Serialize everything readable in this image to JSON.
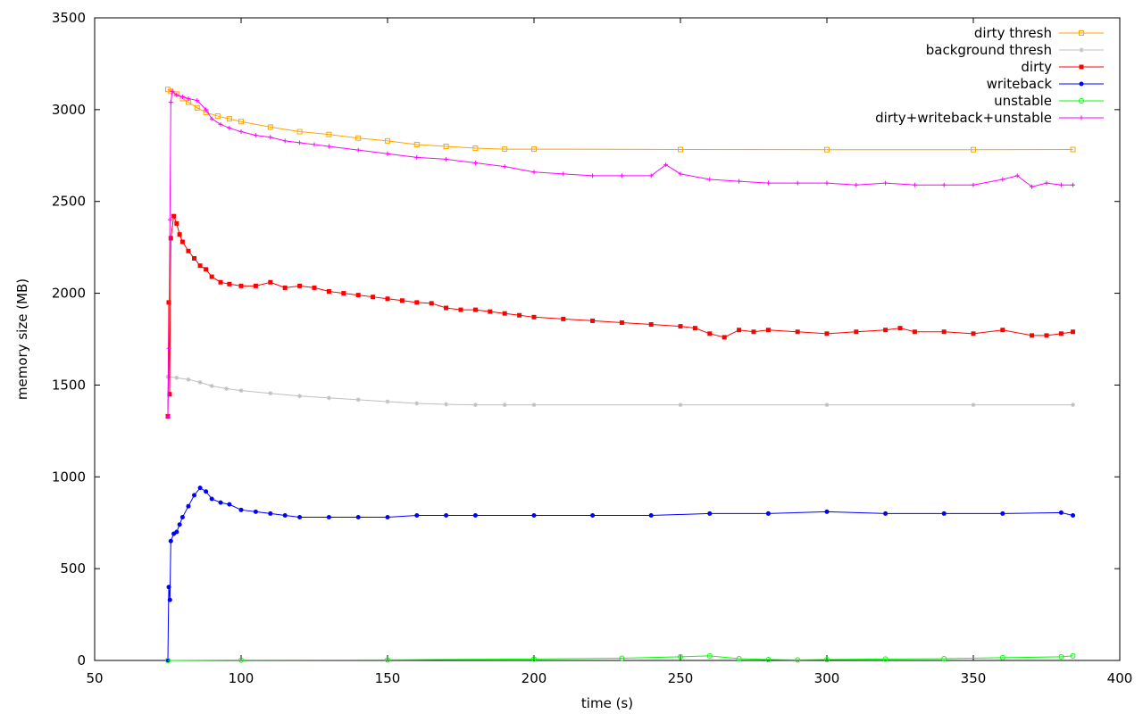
{
  "chart_data": {
    "type": "line",
    "xlabel": "time (s)",
    "ylabel": "memory size (MB)",
    "xlim": [
      50,
      400
    ],
    "ylim": [
      0,
      3500
    ],
    "xticks": [
      50,
      100,
      150,
      200,
      250,
      300,
      350,
      400
    ],
    "yticks": [
      0,
      500,
      1000,
      1500,
      2000,
      2500,
      3000,
      3500
    ],
    "grid": false,
    "legend_position": "top-right",
    "series": [
      {
        "name": "dirty thresh",
        "color": "#ffa500",
        "marker": "square-open",
        "points": [
          [
            75,
            3110
          ],
          [
            76,
            3100
          ],
          [
            78,
            3085
          ],
          [
            80,
            3060
          ],
          [
            82,
            3040
          ],
          [
            85,
            3010
          ],
          [
            88,
            2985
          ],
          [
            92,
            2965
          ],
          [
            96,
            2950
          ],
          [
            100,
            2935
          ],
          [
            110,
            2905
          ],
          [
            120,
            2880
          ],
          [
            130,
            2865
          ],
          [
            140,
            2845
          ],
          [
            150,
            2830
          ],
          [
            160,
            2810
          ],
          [
            170,
            2800
          ],
          [
            180,
            2790
          ],
          [
            190,
            2785
          ],
          [
            200,
            2785
          ],
          [
            250,
            2783
          ],
          [
            300,
            2782
          ],
          [
            350,
            2782
          ],
          [
            384,
            2783
          ]
        ]
      },
      {
        "name": "background thresh",
        "color": "#c0c0c0",
        "marker": "asterisk",
        "points": [
          [
            75,
            1545
          ],
          [
            78,
            1540
          ],
          [
            82,
            1530
          ],
          [
            86,
            1515
          ],
          [
            90,
            1495
          ],
          [
            95,
            1480
          ],
          [
            100,
            1470
          ],
          [
            110,
            1455
          ],
          [
            120,
            1440
          ],
          [
            130,
            1430
          ],
          [
            140,
            1420
          ],
          [
            150,
            1410
          ],
          [
            160,
            1400
          ],
          [
            170,
            1395
          ],
          [
            180,
            1392
          ],
          [
            190,
            1392
          ],
          [
            200,
            1392
          ],
          [
            250,
            1392
          ],
          [
            300,
            1392
          ],
          [
            350,
            1392
          ],
          [
            384,
            1392
          ]
        ]
      },
      {
        "name": "dirty",
        "color": "#ff0000",
        "marker": "square-filled",
        "points": [
          [
            75,
            1330
          ],
          [
            75.3,
            1950
          ],
          [
            75.6,
            1450
          ],
          [
            76,
            2300
          ],
          [
            77,
            2420
          ],
          [
            78,
            2380
          ],
          [
            79,
            2320
          ],
          [
            80,
            2280
          ],
          [
            82,
            2230
          ],
          [
            84,
            2190
          ],
          [
            86,
            2150
          ],
          [
            88,
            2130
          ],
          [
            90,
            2090
          ],
          [
            93,
            2060
          ],
          [
            96,
            2050
          ],
          [
            100,
            2040
          ],
          [
            105,
            2040
          ],
          [
            110,
            2060
          ],
          [
            115,
            2030
          ],
          [
            120,
            2040
          ],
          [
            125,
            2030
          ],
          [
            130,
            2010
          ],
          [
            135,
            2000
          ],
          [
            140,
            1990
          ],
          [
            145,
            1980
          ],
          [
            150,
            1970
          ],
          [
            155,
            1960
          ],
          [
            160,
            1950
          ],
          [
            165,
            1945
          ],
          [
            170,
            1920
          ],
          [
            175,
            1910
          ],
          [
            180,
            1910
          ],
          [
            185,
            1900
          ],
          [
            190,
            1890
          ],
          [
            195,
            1880
          ],
          [
            200,
            1870
          ],
          [
            210,
            1860
          ],
          [
            220,
            1850
          ],
          [
            230,
            1840
          ],
          [
            240,
            1830
          ],
          [
            250,
            1820
          ],
          [
            255,
            1810
          ],
          [
            260,
            1780
          ],
          [
            265,
            1760
          ],
          [
            270,
            1800
          ],
          [
            275,
            1790
          ],
          [
            280,
            1800
          ],
          [
            290,
            1790
          ],
          [
            300,
            1780
          ],
          [
            310,
            1790
          ],
          [
            320,
            1800
          ],
          [
            325,
            1810
          ],
          [
            330,
            1790
          ],
          [
            340,
            1790
          ],
          [
            350,
            1780
          ],
          [
            360,
            1800
          ],
          [
            370,
            1770
          ],
          [
            375,
            1770
          ],
          [
            380,
            1780
          ],
          [
            384,
            1790
          ]
        ]
      },
      {
        "name": "writeback",
        "color": "#0000ff",
        "marker": "circle-filled",
        "points": [
          [
            75,
            0
          ],
          [
            75.3,
            400
          ],
          [
            75.7,
            330
          ],
          [
            76,
            650
          ],
          [
            77,
            690
          ],
          [
            78,
            700
          ],
          [
            79,
            740
          ],
          [
            80,
            780
          ],
          [
            82,
            840
          ],
          [
            84,
            900
          ],
          [
            86,
            940
          ],
          [
            88,
            920
          ],
          [
            90,
            880
          ],
          [
            93,
            860
          ],
          [
            96,
            850
          ],
          [
            100,
            820
          ],
          [
            105,
            810
          ],
          [
            110,
            800
          ],
          [
            115,
            790
          ],
          [
            120,
            780
          ],
          [
            130,
            780
          ],
          [
            140,
            780
          ],
          [
            150,
            780
          ],
          [
            160,
            790
          ],
          [
            170,
            790
          ],
          [
            180,
            790
          ],
          [
            200,
            790
          ],
          [
            220,
            790
          ],
          [
            240,
            790
          ],
          [
            260,
            800
          ],
          [
            280,
            800
          ],
          [
            300,
            810
          ],
          [
            320,
            800
          ],
          [
            340,
            800
          ],
          [
            360,
            800
          ],
          [
            380,
            805
          ],
          [
            384,
            790
          ]
        ]
      },
      {
        "name": "unstable",
        "color": "#00ff00",
        "marker": "circle-open",
        "points": [
          [
            75,
            0
          ],
          [
            100,
            2
          ],
          [
            150,
            3
          ],
          [
            200,
            8
          ],
          [
            230,
            12
          ],
          [
            250,
            20
          ],
          [
            260,
            25
          ],
          [
            270,
            10
          ],
          [
            280,
            5
          ],
          [
            290,
            3
          ],
          [
            300,
            5
          ],
          [
            320,
            8
          ],
          [
            340,
            10
          ],
          [
            360,
            15
          ],
          [
            380,
            20
          ],
          [
            384,
            25
          ]
        ]
      },
      {
        "name": "dirty+writeback+unstable",
        "color": "#ff00ff",
        "marker": "plus",
        "points": [
          [
            75,
            1330
          ],
          [
            75.3,
            1700
          ],
          [
            75.7,
            2400
          ],
          [
            76,
            3040
          ],
          [
            76.5,
            3100
          ],
          [
            78,
            3080
          ],
          [
            80,
            3070
          ],
          [
            82,
            3060
          ],
          [
            85,
            3050
          ],
          [
            88,
            3000
          ],
          [
            90,
            2950
          ],
          [
            93,
            2920
          ],
          [
            96,
            2900
          ],
          [
            100,
            2880
          ],
          [
            105,
            2860
          ],
          [
            110,
            2850
          ],
          [
            115,
            2830
          ],
          [
            120,
            2820
          ],
          [
            125,
            2810
          ],
          [
            130,
            2800
          ],
          [
            140,
            2780
          ],
          [
            150,
            2760
          ],
          [
            160,
            2740
          ],
          [
            170,
            2730
          ],
          [
            180,
            2710
          ],
          [
            190,
            2690
          ],
          [
            200,
            2660
          ],
          [
            210,
            2650
          ],
          [
            220,
            2640
          ],
          [
            230,
            2640
          ],
          [
            240,
            2640
          ],
          [
            245,
            2700
          ],
          [
            250,
            2650
          ],
          [
            260,
            2620
          ],
          [
            270,
            2610
          ],
          [
            280,
            2600
          ],
          [
            290,
            2600
          ],
          [
            300,
            2600
          ],
          [
            310,
            2590
          ],
          [
            320,
            2600
          ],
          [
            330,
            2590
          ],
          [
            340,
            2590
          ],
          [
            350,
            2590
          ],
          [
            360,
            2620
          ],
          [
            365,
            2640
          ],
          [
            370,
            2580
          ],
          [
            375,
            2600
          ],
          [
            380,
            2590
          ],
          [
            384,
            2590
          ]
        ]
      }
    ]
  }
}
